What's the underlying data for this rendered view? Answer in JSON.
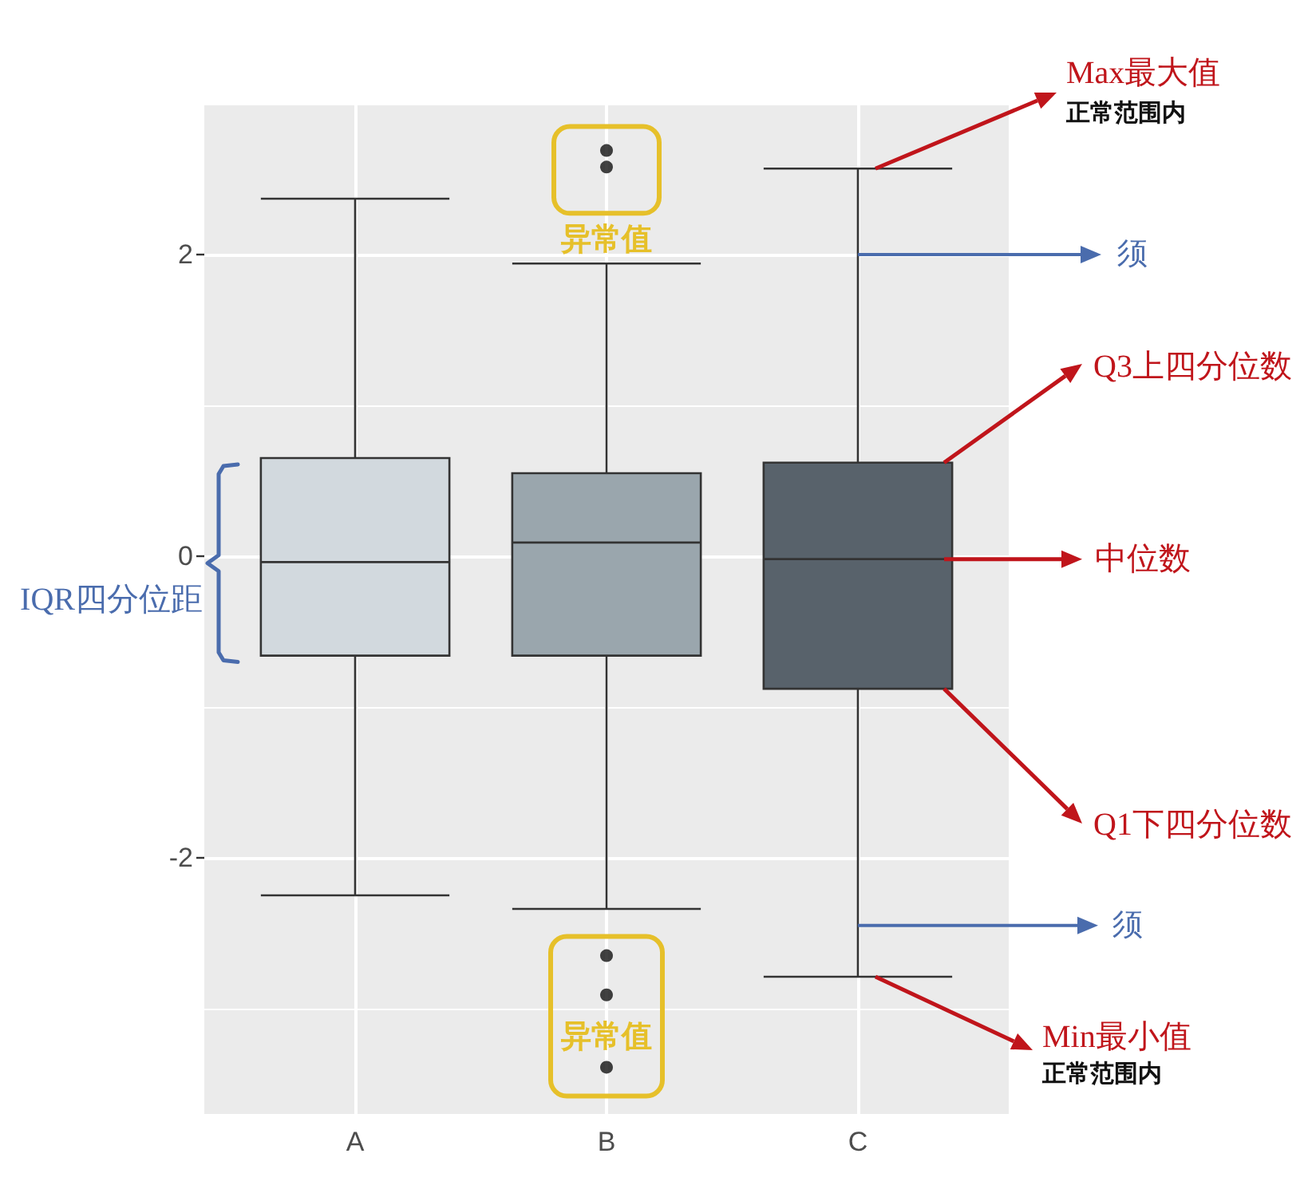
{
  "chart_data": {
    "type": "box",
    "categories": [
      "A",
      "B",
      "C"
    ],
    "colors": [
      "#d2d9de",
      "#9aa6ad",
      "#58626b"
    ],
    "boxes": [
      {
        "low": -2.25,
        "q1": -0.66,
        "median": -0.04,
        "q3": 0.65,
        "high": 2.37
      },
      {
        "low": -2.34,
        "q1": -0.66,
        "median": 0.09,
        "q3": 0.55,
        "high": 1.94,
        "outliers": [
          2.69,
          2.58,
          -2.65,
          -2.91,
          -3.39
        ]
      },
      {
        "low": -2.79,
        "q1": -0.88,
        "median": -0.02,
        "q3": 0.62,
        "high": 2.57
      }
    ],
    "ylim": [
      -3.7,
      3.0
    ],
    "yticks": [
      -2,
      0,
      2
    ],
    "grid": true,
    "annotations": [
      "Max最大值",
      "正常范围内",
      {
        "text": "须",
        "x": "C",
        "y": 2
      },
      "Q3上四分位数",
      "中位数",
      "Q1下四分位数",
      {
        "text": "须",
        "x": "C",
        "y": -2.45
      },
      "Min最小值",
      "正常范围内",
      "IQR四分位距",
      "异常值",
      "异常值"
    ]
  }
}
